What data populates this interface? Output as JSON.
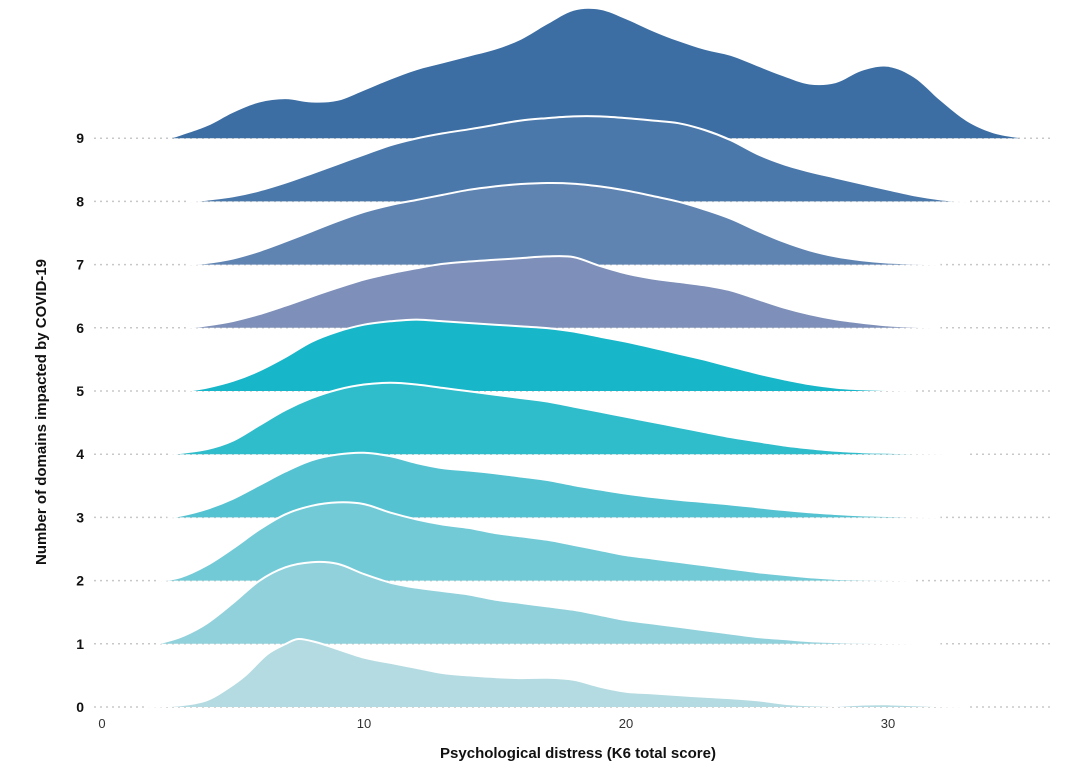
{
  "chart_data": {
    "type": "ridgeline",
    "title": "",
    "xlabel": "Psychological distress (K6 total score)",
    "ylabel": "Number of domains impacted by COVID-19",
    "xlim": [
      0,
      36
    ],
    "x_ticks": [
      "0",
      "10",
      "20",
      "30"
    ],
    "x_tick_values": [
      0,
      10,
      20,
      30
    ],
    "categories": [
      "0",
      "1",
      "2",
      "3",
      "4",
      "5",
      "6",
      "7",
      "8",
      "9"
    ],
    "grid": "dotted baseline per category",
    "fill_colors": [
      "#b3dbe1",
      "#91d1db",
      "#72cad7",
      "#54c2d1",
      "#2fbccb",
      "#18b6c9",
      "#7e90b9",
      "#5f84b2",
      "#4b78ab",
      "#3c6ea4"
    ],
    "outline_color": "#ffffff",
    "series": [
      {
        "category": "0",
        "points": [
          [
            1.6,
            0
          ],
          [
            3,
            0.05
          ],
          [
            4,
            0.2
          ],
          [
            4.8,
            0.55
          ],
          [
            5.5,
            0.95
          ],
          [
            6.3,
            1.55
          ],
          [
            7,
            1.85
          ],
          [
            7.5,
            2
          ],
          [
            8.2,
            1.9
          ],
          [
            9,
            1.7
          ],
          [
            10,
            1.45
          ],
          [
            11,
            1.3
          ],
          [
            12,
            1.15
          ],
          [
            13,
            1.0
          ],
          [
            14,
            0.93
          ],
          [
            15,
            0.88
          ],
          [
            16,
            0.85
          ],
          [
            17,
            0.86
          ],
          [
            18,
            0.8
          ],
          [
            19,
            0.6
          ],
          [
            20,
            0.45
          ],
          [
            21,
            0.4
          ],
          [
            22,
            0.35
          ],
          [
            23,
            0.3
          ],
          [
            24,
            0.26
          ],
          [
            25,
            0.2
          ],
          [
            26,
            0.1
          ],
          [
            27,
            0.05
          ],
          [
            28,
            0.03
          ],
          [
            29,
            0.07
          ],
          [
            30,
            0.08
          ],
          [
            31,
            0.05
          ],
          [
            32,
            0.02
          ],
          [
            33,
            0
          ]
        ]
      },
      {
        "category": "1",
        "points": [
          [
            2.1,
            0
          ],
          [
            3,
            0.2
          ],
          [
            4,
            0.6
          ],
          [
            5,
            1.2
          ],
          [
            6,
            1.85
          ],
          [
            7,
            2.25
          ],
          [
            8,
            2.4
          ],
          [
            9,
            2.35
          ],
          [
            10,
            2.05
          ],
          [
            11,
            1.8
          ],
          [
            12,
            1.65
          ],
          [
            13,
            1.55
          ],
          [
            14,
            1.45
          ],
          [
            15,
            1.3
          ],
          [
            16,
            1.2
          ],
          [
            17,
            1.1
          ],
          [
            18,
            1.0
          ],
          [
            19,
            0.85
          ],
          [
            20,
            0.7
          ],
          [
            21,
            0.6
          ],
          [
            22,
            0.5
          ],
          [
            23,
            0.4
          ],
          [
            24,
            0.3
          ],
          [
            25,
            0.2
          ],
          [
            26,
            0.14
          ],
          [
            27,
            0.08
          ],
          [
            28,
            0.05
          ],
          [
            29,
            0.03
          ],
          [
            31,
            0.01
          ],
          [
            32,
            0
          ]
        ]
      },
      {
        "category": "2",
        "points": [
          [
            2.2,
            0
          ],
          [
            3,
            0.1
          ],
          [
            4,
            0.45
          ],
          [
            5,
            0.95
          ],
          [
            6,
            1.5
          ],
          [
            7,
            1.95
          ],
          [
            8,
            2.2
          ],
          [
            9,
            2.3
          ],
          [
            10,
            2.25
          ],
          [
            11,
            2.0
          ],
          [
            12,
            1.8
          ],
          [
            13,
            1.65
          ],
          [
            14,
            1.55
          ],
          [
            15,
            1.4
          ],
          [
            16,
            1.3
          ],
          [
            17,
            1.2
          ],
          [
            18,
            1.05
          ],
          [
            19,
            0.9
          ],
          [
            20,
            0.75
          ],
          [
            21,
            0.65
          ],
          [
            22,
            0.55
          ],
          [
            23,
            0.45
          ],
          [
            24,
            0.35
          ],
          [
            25,
            0.25
          ],
          [
            26,
            0.17
          ],
          [
            27,
            0.1
          ],
          [
            28,
            0.05
          ],
          [
            30,
            0.02
          ],
          [
            31,
            0
          ]
        ]
      },
      {
        "category": "3",
        "points": [
          [
            2.5,
            0
          ],
          [
            3,
            0.05
          ],
          [
            4,
            0.25
          ],
          [
            5,
            0.55
          ],
          [
            6,
            0.95
          ],
          [
            7,
            1.35
          ],
          [
            8,
            1.68
          ],
          [
            9,
            1.85
          ],
          [
            10,
            1.9
          ],
          [
            11,
            1.8
          ],
          [
            12,
            1.6
          ],
          [
            13,
            1.45
          ],
          [
            14,
            1.38
          ],
          [
            15,
            1.3
          ],
          [
            16,
            1.2
          ],
          [
            17,
            1.1
          ],
          [
            18,
            0.95
          ],
          [
            19,
            0.82
          ],
          [
            20,
            0.7
          ],
          [
            21,
            0.6
          ],
          [
            22,
            0.52
          ],
          [
            23,
            0.45
          ],
          [
            24,
            0.38
          ],
          [
            25,
            0.3
          ],
          [
            26,
            0.22
          ],
          [
            27,
            0.15
          ],
          [
            28,
            0.1
          ],
          [
            29,
            0.06
          ],
          [
            30,
            0.04
          ],
          [
            32,
            0
          ]
        ]
      },
      {
        "category": "4",
        "points": [
          [
            2.6,
            0
          ],
          [
            4,
            0.15
          ],
          [
            5,
            0.4
          ],
          [
            6,
            0.85
          ],
          [
            7,
            1.3
          ],
          [
            8,
            1.65
          ],
          [
            9,
            1.9
          ],
          [
            10,
            2.05
          ],
          [
            11,
            2.1
          ],
          [
            12,
            2.05
          ],
          [
            13,
            1.95
          ],
          [
            14,
            1.85
          ],
          [
            15,
            1.75
          ],
          [
            16,
            1.65
          ],
          [
            17,
            1.55
          ],
          [
            18,
            1.4
          ],
          [
            19,
            1.25
          ],
          [
            20,
            1.1
          ],
          [
            21,
            0.95
          ],
          [
            22,
            0.8
          ],
          [
            23,
            0.65
          ],
          [
            24,
            0.5
          ],
          [
            25,
            0.38
          ],
          [
            26,
            0.26
          ],
          [
            27,
            0.17
          ],
          [
            28,
            0.1
          ],
          [
            29,
            0.06
          ],
          [
            30,
            0.04
          ],
          [
            31,
            0.02
          ],
          [
            33,
            0
          ]
        ]
      },
      {
        "category": "5",
        "points": [
          [
            3.2,
            0
          ],
          [
            4,
            0.1
          ],
          [
            5,
            0.3
          ],
          [
            6,
            0.6
          ],
          [
            7,
            1.0
          ],
          [
            8,
            1.45
          ],
          [
            9,
            1.75
          ],
          [
            10,
            1.95
          ],
          [
            11,
            2.05
          ],
          [
            12,
            2.1
          ],
          [
            13,
            2.05
          ],
          [
            14,
            2.0
          ],
          [
            15,
            1.95
          ],
          [
            16,
            1.9
          ],
          [
            17,
            1.85
          ],
          [
            18,
            1.75
          ],
          [
            19,
            1.6
          ],
          [
            20,
            1.45
          ],
          [
            21,
            1.28
          ],
          [
            22,
            1.1
          ],
          [
            23,
            0.92
          ],
          [
            24,
            0.72
          ],
          [
            25,
            0.52
          ],
          [
            26,
            0.35
          ],
          [
            27,
            0.2
          ],
          [
            28,
            0.1
          ],
          [
            29,
            0.05
          ],
          [
            30,
            0.03
          ],
          [
            31,
            0
          ]
        ]
      },
      {
        "category": "6",
        "points": [
          [
            3.2,
            0
          ],
          [
            4,
            0.07
          ],
          [
            5,
            0.2
          ],
          [
            6,
            0.4
          ],
          [
            7,
            0.65
          ],
          [
            8,
            0.92
          ],
          [
            9,
            1.18
          ],
          [
            10,
            1.42
          ],
          [
            11,
            1.6
          ],
          [
            12,
            1.75
          ],
          [
            13,
            1.88
          ],
          [
            14,
            1.95
          ],
          [
            15,
            2.0
          ],
          [
            16,
            2.05
          ],
          [
            17,
            2.1
          ],
          [
            18,
            2.08
          ],
          [
            19,
            1.82
          ],
          [
            20,
            1.6
          ],
          [
            21,
            1.45
          ],
          [
            22,
            1.35
          ],
          [
            23,
            1.25
          ],
          [
            24,
            1.1
          ],
          [
            25,
            0.85
          ],
          [
            26,
            0.6
          ],
          [
            27,
            0.4
          ],
          [
            28,
            0.25
          ],
          [
            29,
            0.15
          ],
          [
            30,
            0.07
          ],
          [
            31,
            0.03
          ],
          [
            32,
            0
          ]
        ]
      },
      {
        "category": "7",
        "points": [
          [
            3.2,
            0
          ],
          [
            4,
            0.05
          ],
          [
            5,
            0.18
          ],
          [
            6,
            0.4
          ],
          [
            7,
            0.68
          ],
          [
            8,
            0.98
          ],
          [
            9,
            1.28
          ],
          [
            10,
            1.55
          ],
          [
            11,
            1.75
          ],
          [
            12,
            1.9
          ],
          [
            13,
            2.05
          ],
          [
            14,
            2.2
          ],
          [
            15,
            2.3
          ],
          [
            16,
            2.37
          ],
          [
            17,
            2.4
          ],
          [
            18,
            2.38
          ],
          [
            19,
            2.3
          ],
          [
            20,
            2.18
          ],
          [
            21,
            2.02
          ],
          [
            22,
            1.85
          ],
          [
            23,
            1.62
          ],
          [
            24,
            1.35
          ],
          [
            25,
            1.0
          ],
          [
            26,
            0.68
          ],
          [
            27,
            0.42
          ],
          [
            28,
            0.24
          ],
          [
            29,
            0.13
          ],
          [
            30,
            0.06
          ],
          [
            31,
            0.03
          ],
          [
            32,
            0
          ]
        ]
      },
      {
        "category": "8",
        "points": [
          [
            3.3,
            0
          ],
          [
            4,
            0.05
          ],
          [
            5,
            0.15
          ],
          [
            6,
            0.32
          ],
          [
            7,
            0.55
          ],
          [
            8,
            0.82
          ],
          [
            9,
            1.1
          ],
          [
            10,
            1.38
          ],
          [
            11,
            1.65
          ],
          [
            12,
            1.85
          ],
          [
            13,
            2.0
          ],
          [
            14,
            2.12
          ],
          [
            15,
            2.25
          ],
          [
            16,
            2.38
          ],
          [
            17,
            2.45
          ],
          [
            18,
            2.5
          ],
          [
            19,
            2.5
          ],
          [
            20,
            2.45
          ],
          [
            21,
            2.38
          ],
          [
            22,
            2.3
          ],
          [
            23,
            2.1
          ],
          [
            24,
            1.8
          ],
          [
            25,
            1.4
          ],
          [
            26,
            1.1
          ],
          [
            27,
            0.88
          ],
          [
            28,
            0.7
          ],
          [
            29,
            0.52
          ],
          [
            30,
            0.35
          ],
          [
            31,
            0.18
          ],
          [
            32,
            0.06
          ],
          [
            33,
            0
          ]
        ]
      },
      {
        "category": "9",
        "points": [
          [
            2.7,
            0
          ],
          [
            4,
            0.35
          ],
          [
            5,
            0.75
          ],
          [
            6,
            1.05
          ],
          [
            7,
            1.15
          ],
          [
            8,
            1.05
          ],
          [
            9,
            1.1
          ],
          [
            10,
            1.4
          ],
          [
            11,
            1.72
          ],
          [
            12,
            2.0
          ],
          [
            13,
            2.2
          ],
          [
            14,
            2.4
          ],
          [
            15,
            2.6
          ],
          [
            16,
            2.9
          ],
          [
            17,
            3.35
          ],
          [
            18,
            3.75
          ],
          [
            19,
            3.78
          ],
          [
            20,
            3.5
          ],
          [
            21,
            3.15
          ],
          [
            22,
            2.85
          ],
          [
            23,
            2.6
          ],
          [
            24,
            2.42
          ],
          [
            25,
            2.12
          ],
          [
            26,
            1.82
          ],
          [
            27,
            1.58
          ],
          [
            28,
            1.62
          ],
          [
            29,
            1.98
          ],
          [
            30,
            2.1
          ],
          [
            31,
            1.78
          ],
          [
            32,
            1.1
          ],
          [
            33,
            0.5
          ],
          [
            34,
            0.15
          ],
          [
            35,
            0
          ]
        ]
      }
    ]
  }
}
